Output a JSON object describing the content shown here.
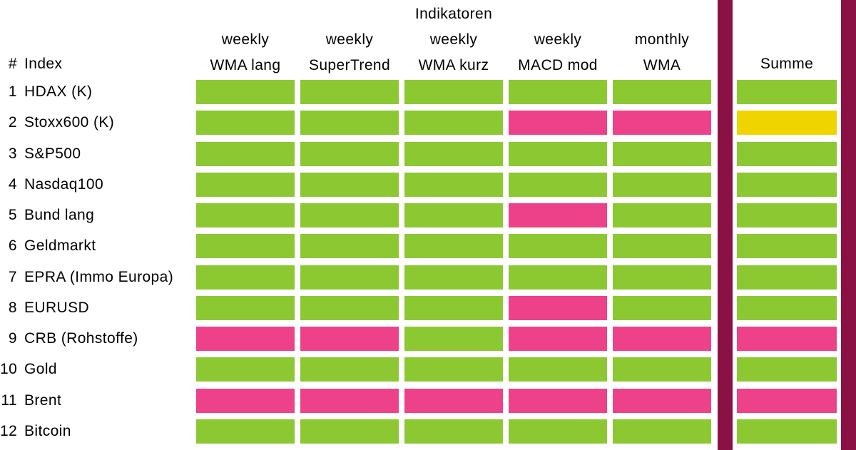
{
  "title": "Indikatoren",
  "corner": {
    "hash": "#",
    "index_label": "Index"
  },
  "summe_header": "Summe",
  "columns": [
    {
      "period": "weekly",
      "name": "WMA lang"
    },
    {
      "period": "weekly",
      "name": "SuperTrend"
    },
    {
      "period": "weekly",
      "name": "WMA kurz"
    },
    {
      "period": "weekly",
      "name": "MACD mod"
    },
    {
      "period": "monthly",
      "name": "WMA"
    }
  ],
  "rows": [
    {
      "num": "1",
      "name": "HDAX (K)",
      "cells": [
        "green",
        "green",
        "green",
        "green",
        "green"
      ],
      "summe": "green"
    },
    {
      "num": "2",
      "name": "Stoxx600 (K)",
      "cells": [
        "green",
        "green",
        "green",
        "pink",
        "pink"
      ],
      "summe": "yellow"
    },
    {
      "num": "3",
      "name": "S&P500",
      "cells": [
        "green",
        "green",
        "green",
        "green",
        "green"
      ],
      "summe": "green"
    },
    {
      "num": "4",
      "name": "Nasdaq100",
      "cells": [
        "green",
        "green",
        "green",
        "green",
        "green"
      ],
      "summe": "green"
    },
    {
      "num": "5",
      "name": "Bund lang",
      "cells": [
        "green",
        "green",
        "green",
        "pink",
        "green"
      ],
      "summe": "green"
    },
    {
      "num": "6",
      "name": "Geldmarkt",
      "cells": [
        "green",
        "green",
        "green",
        "green",
        "green"
      ],
      "summe": "green"
    },
    {
      "num": "7",
      "name": "EPRA (Immo Europa)",
      "cells": [
        "green",
        "green",
        "green",
        "green",
        "green"
      ],
      "summe": "green"
    },
    {
      "num": "8",
      "name": "EURUSD",
      "cells": [
        "green",
        "green",
        "green",
        "pink",
        "green"
      ],
      "summe": "green"
    },
    {
      "num": "9",
      "name": "CRB (Rohstoffe)",
      "cells": [
        "pink",
        "pink",
        "green",
        "pink",
        "pink"
      ],
      "summe": "pink"
    },
    {
      "num": "10",
      "name": "Gold",
      "cells": [
        "green",
        "green",
        "green",
        "green",
        "green"
      ],
      "summe": "green"
    },
    {
      "num": "11",
      "name": "Brent",
      "cells": [
        "pink",
        "pink",
        "pink",
        "pink",
        "pink"
      ],
      "summe": "pink"
    },
    {
      "num": "12",
      "name": "Bitcoin",
      "cells": [
        "green",
        "green",
        "green",
        "green",
        "green"
      ],
      "summe": "green"
    }
  ],
  "colors": {
    "green": "#8CC832",
    "pink": "#ED4289",
    "yellow": "#F0D400",
    "separator_maroon": "#8B1043",
    "text": "#000000",
    "background": "#FFFFFF"
  },
  "chart_data": {
    "type": "heatmap",
    "title": "Indikatoren",
    "x_labels": [
      "weekly WMA lang",
      "weekly SuperTrend",
      "weekly WMA kurz",
      "weekly MACD mod",
      "monthly WMA",
      "Summe"
    ],
    "y_labels": [
      "HDAX (K)",
      "Stoxx600 (K)",
      "S&P500",
      "Nasdaq100",
      "Bund lang",
      "Geldmarkt",
      "EPRA (Immo Europa)",
      "EURUSD",
      "CRB (Rohstoffe)",
      "Gold",
      "Brent",
      "Bitcoin"
    ],
    "values": [
      [
        "green",
        "green",
        "green",
        "green",
        "green",
        "green"
      ],
      [
        "green",
        "green",
        "green",
        "pink",
        "pink",
        "yellow"
      ],
      [
        "green",
        "green",
        "green",
        "green",
        "green",
        "green"
      ],
      [
        "green",
        "green",
        "green",
        "green",
        "green",
        "green"
      ],
      [
        "green",
        "green",
        "green",
        "pink",
        "green",
        "green"
      ],
      [
        "green",
        "green",
        "green",
        "green",
        "green",
        "green"
      ],
      [
        "green",
        "green",
        "green",
        "green",
        "green",
        "green"
      ],
      [
        "green",
        "green",
        "green",
        "pink",
        "green",
        "green"
      ],
      [
        "pink",
        "pink",
        "green",
        "pink",
        "pink",
        "pink"
      ],
      [
        "green",
        "green",
        "green",
        "green",
        "green",
        "green"
      ],
      [
        "pink",
        "pink",
        "pink",
        "pink",
        "pink",
        "pink"
      ],
      [
        "green",
        "green",
        "green",
        "green",
        "green",
        "green"
      ]
    ],
    "color_key": {
      "green": "#8CC832",
      "pink": "#ED4289",
      "yellow": "#F0D400"
    },
    "grid": false,
    "legend_position": "none"
  }
}
